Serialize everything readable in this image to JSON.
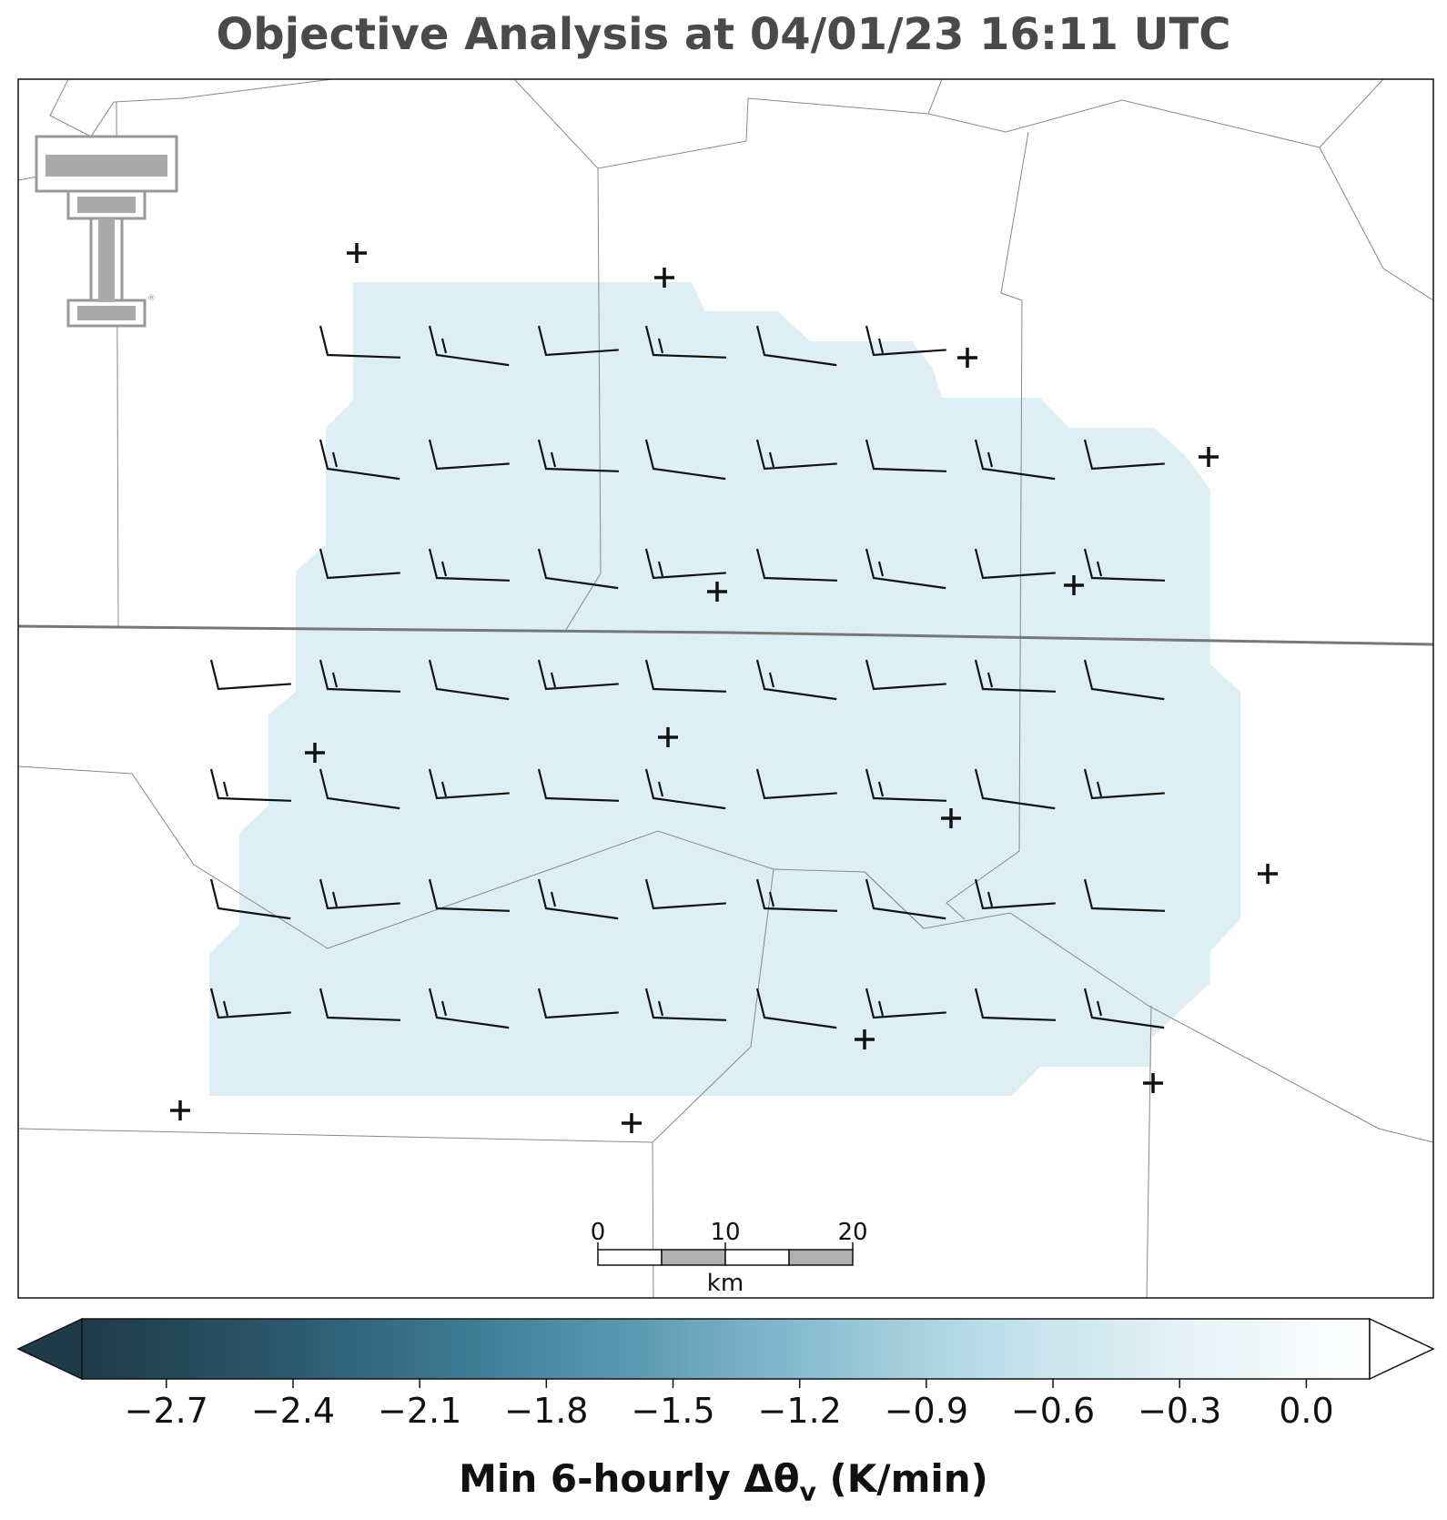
{
  "title": "Objective Analysis at 04/01/23 16:11 UTC",
  "colorbar": {
    "label_prefix": "Min 6-hourly Δθ",
    "label_subscript": "v",
    "label_suffix": " (K/min)",
    "min": -2.9,
    "max": 0.15,
    "extend": "both",
    "ticks": [
      "−2.7",
      "−2.4",
      "−2.1",
      "−1.8",
      "−1.5",
      "−1.2",
      "−0.9",
      "−0.6",
      "−0.3",
      "0.0"
    ],
    "tick_values": [
      -2.7,
      -2.4,
      -2.1,
      -1.8,
      -1.5,
      -1.2,
      -0.9,
      -0.6,
      -0.3,
      0.0
    ],
    "colors": [
      "#1f3a48",
      "#2a5568",
      "#3a7891",
      "#5a9ab2",
      "#8cbfd2",
      "#bfe0ea",
      "#e6f2f6",
      "#ffffff"
    ]
  },
  "scale_bar": {
    "labels": [
      "0",
      "10",
      "20"
    ],
    "unit": "km"
  },
  "logo": {
    "name": "Texas Tech double-T logo",
    "text": "TT"
  },
  "analysis_field": {
    "fill_color": "#ddeef4",
    "approx_value": "-0.5"
  },
  "wind_barbs": {
    "description": "gridded wind barbs, westerly to northwesterly, 5-15 kt",
    "rows": 7,
    "cols_max": 9
  },
  "stations": {
    "marker": "+",
    "count": 15
  }
}
